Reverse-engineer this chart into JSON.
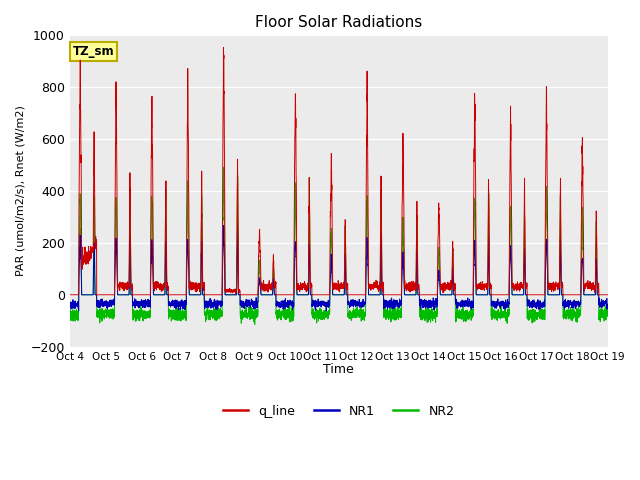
{
  "title": "Floor Solar Radiations",
  "xlabel": "Time",
  "ylabel": "PAR (umol/m2/s), Rnet (W/m2)",
  "ylim": [
    -200,
    1000
  ],
  "yticks": [
    -200,
    0,
    200,
    400,
    600,
    800,
    1000
  ],
  "xtick_labels": [
    "Oct 4",
    "Oct 5",
    "Oct 6",
    "Oct 7",
    "Oct 8",
    "Oct 9",
    "Oct 10",
    "Oct 11",
    "Oct 12",
    "Oct 13",
    "Oct 14",
    "Oct 15",
    "Oct 16",
    "Oct 17",
    "Oct 18",
    "Oct 19"
  ],
  "bg_color": "#ebebeb",
  "line_colors": {
    "q_line": "#cc0000",
    "NR1": "#0000bb",
    "NR2": "#00bb00"
  },
  "annotation_text": "TZ_sm",
  "annotation_bg": "#ffff99",
  "annotation_border": "#bbaa00",
  "legend_labels": [
    "q_line",
    "NR1",
    "NR2"
  ],
  "points_per_day": 288,
  "num_days": 15,
  "peaks_red": [
    760,
    760,
    750,
    775,
    935,
    225,
    775,
    500,
    755,
    550,
    330,
    760,
    650,
    755,
    560
  ],
  "day_baseline_red": [
    150,
    80,
    80,
    80,
    40,
    80,
    80,
    80,
    80,
    80,
    80,
    80,
    80,
    80,
    80
  ],
  "nr1_night": -35,
  "nr2_night": -75
}
